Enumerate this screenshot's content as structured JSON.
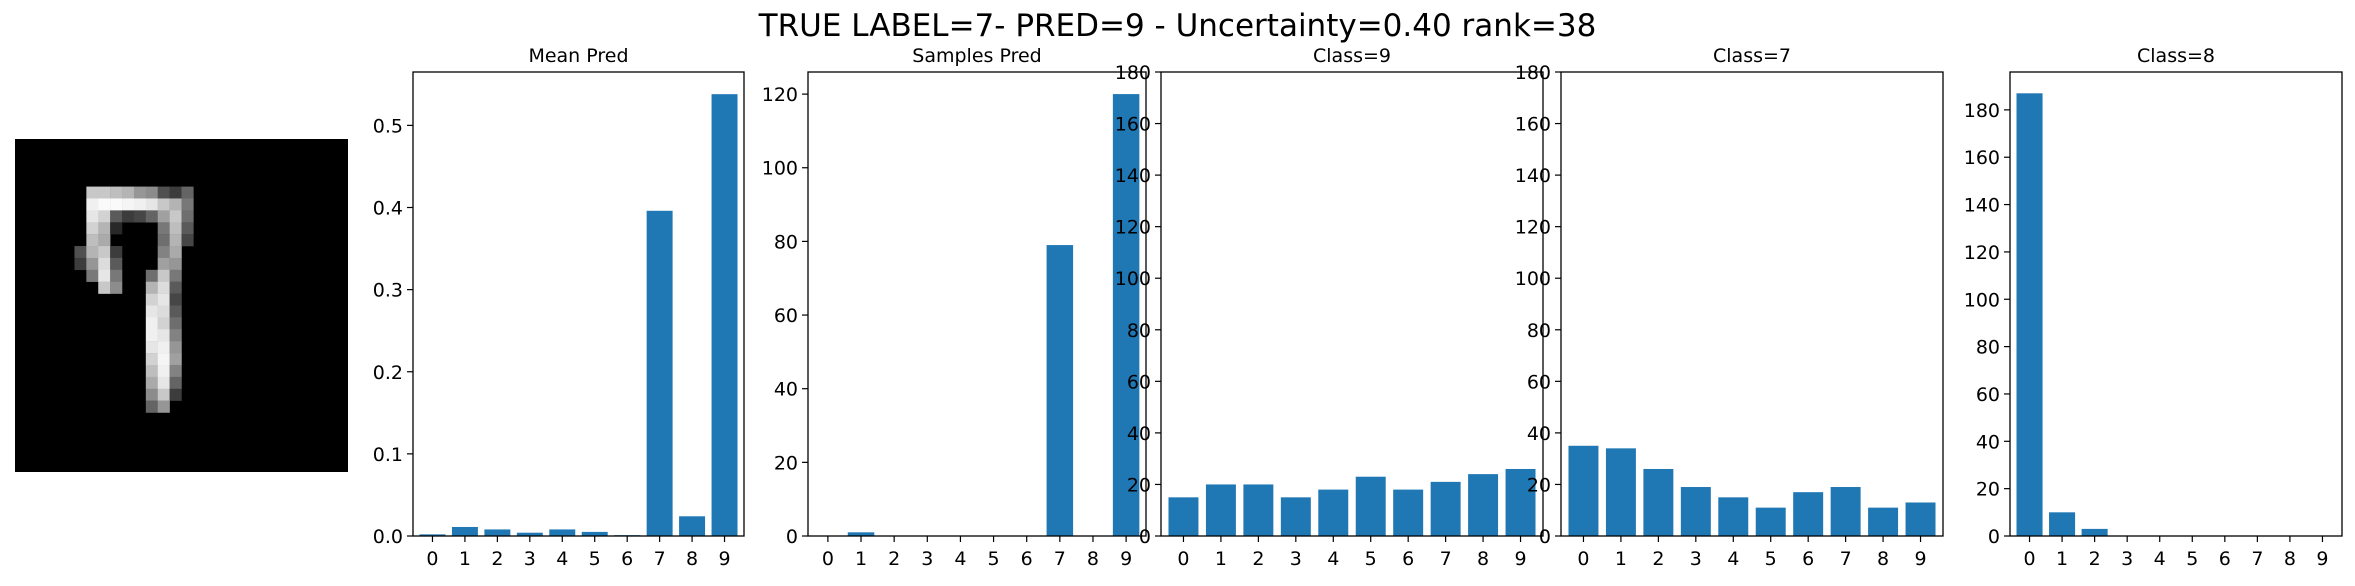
{
  "suptitle": "TRUE LABEL=7- PRED=9 - Uncertainty=0.40 rank=38",
  "colors": {
    "bar": "#1f77b4",
    "axis": "#000000",
    "background": "#ffffff"
  },
  "image": {
    "description_name": "mnist-digit-image",
    "note": "28x28 grayscale digit; bright pixels approximate the handwritten stroke",
    "pixels": [
      [
        9,
        6,
        200
      ],
      [
        9,
        7,
        200
      ],
      [
        9,
        8,
        190
      ],
      [
        9,
        9,
        180
      ],
      [
        9,
        10,
        150
      ],
      [
        9,
        11,
        140
      ],
      [
        9,
        12,
        80
      ],
      [
        9,
        13,
        60
      ],
      [
        9,
        14,
        100
      ],
      [
        10,
        6,
        240
      ],
      [
        10,
        7,
        250
      ],
      [
        10,
        8,
        250
      ],
      [
        10,
        9,
        245
      ],
      [
        10,
        10,
        240
      ],
      [
        10,
        11,
        230
      ],
      [
        10,
        12,
        200
      ],
      [
        10,
        13,
        180
      ],
      [
        10,
        14,
        120
      ],
      [
        11,
        6,
        230
      ],
      [
        11,
        7,
        210
      ],
      [
        11,
        8,
        90
      ],
      [
        11,
        9,
        60
      ],
      [
        11,
        10,
        70
      ],
      [
        11,
        11,
        100
      ],
      [
        11,
        12,
        160
      ],
      [
        11,
        13,
        200
      ],
      [
        11,
        14,
        110
      ],
      [
        12,
        6,
        210
      ],
      [
        12,
        7,
        180
      ],
      [
        12,
        8,
        40
      ],
      [
        12,
        12,
        120
      ],
      [
        12,
        13,
        190
      ],
      [
        12,
        14,
        90
      ],
      [
        13,
        6,
        190
      ],
      [
        13,
        7,
        170
      ],
      [
        13,
        12,
        110
      ],
      [
        13,
        13,
        180
      ],
      [
        13,
        14,
        70
      ],
      [
        14,
        5,
        80
      ],
      [
        14,
        6,
        180
      ],
      [
        14,
        7,
        200
      ],
      [
        14,
        8,
        60
      ],
      [
        14,
        12,
        130
      ],
      [
        14,
        13,
        170
      ],
      [
        15,
        5,
        60
      ],
      [
        15,
        6,
        150
      ],
      [
        15,
        7,
        220
      ],
      [
        15,
        8,
        90
      ],
      [
        15,
        12,
        160
      ],
      [
        15,
        13,
        150
      ],
      [
        16,
        6,
        120
      ],
      [
        16,
        7,
        230
      ],
      [
        16,
        8,
        120
      ],
      [
        16,
        11,
        110
      ],
      [
        16,
        12,
        200
      ],
      [
        16,
        13,
        120
      ],
      [
        17,
        7,
        200
      ],
      [
        17,
        8,
        140
      ],
      [
        17,
        11,
        180
      ],
      [
        17,
        12,
        220
      ],
      [
        17,
        13,
        90
      ],
      [
        18,
        11,
        210
      ],
      [
        18,
        12,
        230
      ],
      [
        18,
        13,
        70
      ],
      [
        19,
        11,
        230
      ],
      [
        19,
        12,
        220
      ],
      [
        19,
        13,
        90
      ],
      [
        20,
        11,
        240
      ],
      [
        20,
        12,
        210
      ],
      [
        20,
        13,
        110
      ],
      [
        21,
        11,
        240
      ],
      [
        21,
        12,
        230
      ],
      [
        21,
        13,
        130
      ],
      [
        22,
        11,
        230
      ],
      [
        22,
        12,
        240
      ],
      [
        22,
        13,
        150
      ],
      [
        23,
        11,
        210
      ],
      [
        23,
        12,
        245
      ],
      [
        23,
        13,
        160
      ],
      [
        24,
        11,
        190
      ],
      [
        24,
        12,
        240
      ],
      [
        24,
        13,
        130
      ],
      [
        25,
        11,
        170
      ],
      [
        25,
        12,
        230
      ],
      [
        25,
        13,
        100
      ],
      [
        26,
        11,
        140
      ],
      [
        26,
        12,
        200
      ],
      [
        26,
        13,
        60
      ],
      [
        27,
        11,
        100
      ],
      [
        27,
        12,
        150
      ]
    ]
  },
  "chart_data": [
    {
      "type": "bar",
      "title": "Mean Pred",
      "categories": [
        "0",
        "1",
        "2",
        "3",
        "4",
        "5",
        "6",
        "7",
        "8",
        "9"
      ],
      "values": [
        0.002,
        0.011,
        0.008,
        0.004,
        0.008,
        0.005,
        0.001,
        0.396,
        0.024,
        0.538
      ],
      "ylim": [
        0,
        0.565
      ],
      "yticks": [
        0.0,
        0.1,
        0.2,
        0.3,
        0.4,
        0.5
      ],
      "ytick_labels": [
        "0.0",
        "0.1",
        "0.2",
        "0.3",
        "0.4",
        "0.5"
      ]
    },
    {
      "type": "bar",
      "title": "Samples Pred",
      "categories": [
        "0",
        "1",
        "2",
        "3",
        "4",
        "5",
        "6",
        "7",
        "8",
        "9"
      ],
      "values": [
        0,
        1,
        0,
        0,
        0,
        0,
        0,
        79,
        0,
        120
      ],
      "ylim": [
        0,
        126
      ],
      "yticks": [
        0,
        20,
        40,
        60,
        80,
        100,
        120
      ],
      "ytick_labels": [
        "0",
        "20",
        "40",
        "60",
        "80",
        "100",
        "120"
      ]
    },
    {
      "type": "bar",
      "title": "Class=9",
      "categories": [
        "0",
        "1",
        "2",
        "3",
        "4",
        "5",
        "6",
        "7",
        "8",
        "9"
      ],
      "values": [
        15,
        20,
        20,
        15,
        18,
        23,
        18,
        21,
        24,
        26
      ],
      "ylim": [
        0,
        180
      ],
      "yticks": [
        0,
        20,
        40,
        60,
        80,
        100,
        120,
        140,
        160,
        180
      ],
      "ytick_labels": [
        "0",
        "20",
        "40",
        "60",
        "80",
        "100",
        "120",
        "140",
        "160",
        "180"
      ]
    },
    {
      "type": "bar",
      "title": "Class=7",
      "categories": [
        "0",
        "1",
        "2",
        "3",
        "4",
        "5",
        "6",
        "7",
        "8",
        "9"
      ],
      "values": [
        35,
        34,
        26,
        19,
        15,
        11,
        17,
        19,
        11,
        13
      ],
      "ylim": [
        0,
        180
      ],
      "yticks": [
        0,
        20,
        40,
        60,
        80,
        100,
        120,
        140,
        160,
        180
      ],
      "ytick_labels": [
        "0",
        "20",
        "40",
        "60",
        "80",
        "100",
        "120",
        "140",
        "160",
        "180"
      ]
    },
    {
      "type": "bar",
      "title": "Class=8",
      "categories": [
        "0",
        "1",
        "2",
        "3",
        "4",
        "5",
        "6",
        "7",
        "8",
        "9"
      ],
      "values": [
        187,
        10,
        3,
        0,
        0,
        0,
        0,
        0,
        0,
        0
      ],
      "ylim": [
        0,
        196
      ],
      "yticks": [
        0,
        20,
        40,
        60,
        80,
        100,
        120,
        140,
        160,
        180
      ],
      "ytick_labels": [
        "0",
        "20",
        "40",
        "60",
        "80",
        "100",
        "120",
        "140",
        "160",
        "180"
      ]
    }
  ]
}
